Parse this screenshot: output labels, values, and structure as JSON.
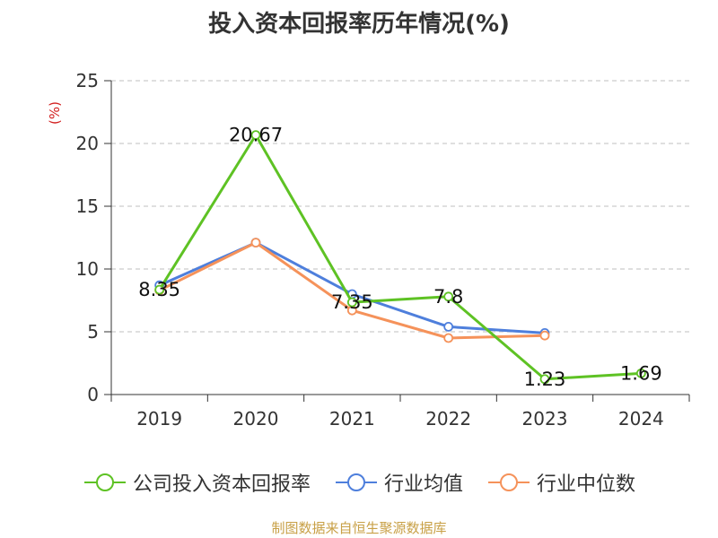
{
  "title": "投入资本回报率历年情况(%)",
  "source": "制图数据来自恒生聚源数据库",
  "legend": [
    "公司投入资本回报率",
    "行业均值",
    "行业中位数"
  ],
  "colors": {
    "company": "#5ec224",
    "industry_avg": "#4e7fdc",
    "industry_median": "#f5925a"
  },
  "chart_data": {
    "type": "line",
    "categories": [
      "2019",
      "2020",
      "2021",
      "2022",
      "2023",
      "2024"
    ],
    "ylabel": "(%)",
    "ylim": [
      0,
      25
    ],
    "yticks": [
      0,
      5,
      10,
      15,
      20,
      25
    ],
    "grid": true,
    "legend_position": "bottom",
    "series": [
      {
        "name": "公司投入资本回报率",
        "values": [
          8.35,
          20.67,
          7.35,
          7.8,
          1.23,
          1.69
        ],
        "labels": [
          "8.35",
          "20.67",
          "7.35",
          "7.8",
          "1.23",
          "1.69"
        ]
      },
      {
        "name": "行业均值",
        "values": [
          8.7,
          12.1,
          8.0,
          5.4,
          4.9,
          null
        ]
      },
      {
        "name": "行业中位数",
        "values": [
          8.3,
          12.1,
          6.7,
          4.5,
          4.7,
          null
        ]
      }
    ]
  }
}
